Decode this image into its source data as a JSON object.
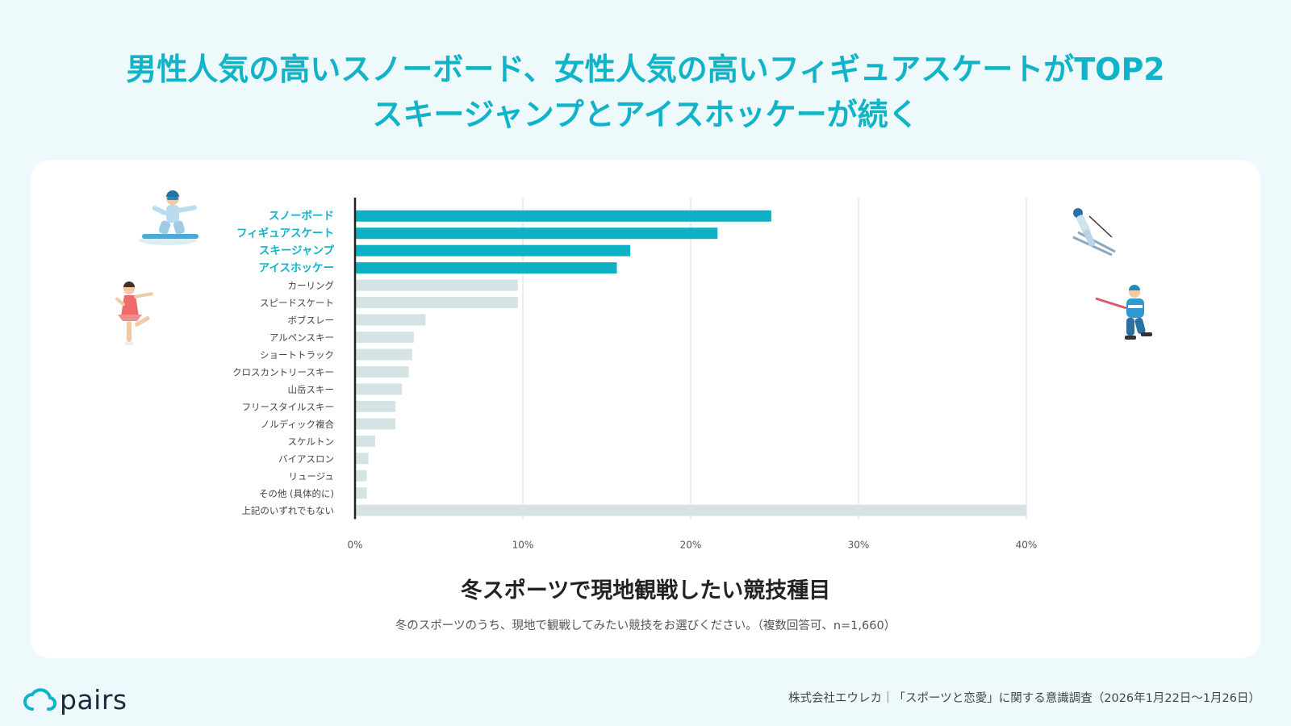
{
  "headline": {
    "line1": "男性人気の高いスノーボード、女性人気の高いフィギュアスケートがTOP2",
    "line2": "スキージャンプとアイスホッケーが続く"
  },
  "colors": {
    "accent": "#10b3c8",
    "bar_highlight": "#0fb0c4",
    "bar_muted": "#d6e3e5",
    "background": "#eef9fb"
  },
  "chart_data": {
    "type": "bar",
    "orientation": "horizontal",
    "title": "冬スポーツで現地観戦したい競技種目",
    "subtitle": "冬のスポーツのうち、現地で観戦してみたい競技をお選びください。（複数回答可、n=1,660）",
    "xlabel": "",
    "ylabel": "",
    "xlim": [
      0,
      40
    ],
    "xticks": [
      "0%",
      "10%",
      "20%",
      "30%",
      "40%"
    ],
    "grid": true,
    "categories": [
      "スノーボード",
      "フィギュアスケート",
      "スキージャンプ",
      "アイスホッケー",
      "カーリング",
      "スピードスケート",
      "ボブスレー",
      "アルペンスキー",
      "ショートトラック",
      "クロスカントリースキー",
      "山岳スキー",
      "フリースタイルスキー",
      "ノルディック複合",
      "スケルトン",
      "バイアスロン",
      "リュージュ",
      "その他 (具体的に)",
      "上記のいずれでもない"
    ],
    "values": [
      24.8,
      21.6,
      16.4,
      15.6,
      9.7,
      9.7,
      4.2,
      3.5,
      3.4,
      3.2,
      2.8,
      2.4,
      2.4,
      1.2,
      0.8,
      0.7,
      0.7,
      40.0
    ],
    "highlighted_count": 4
  },
  "logo": {
    "text": "pairs"
  },
  "footer": {
    "text": "株式会社エウレカ｜「スポーツと恋愛」に関する意識調査（2026年1月22日〜1月26日）"
  }
}
